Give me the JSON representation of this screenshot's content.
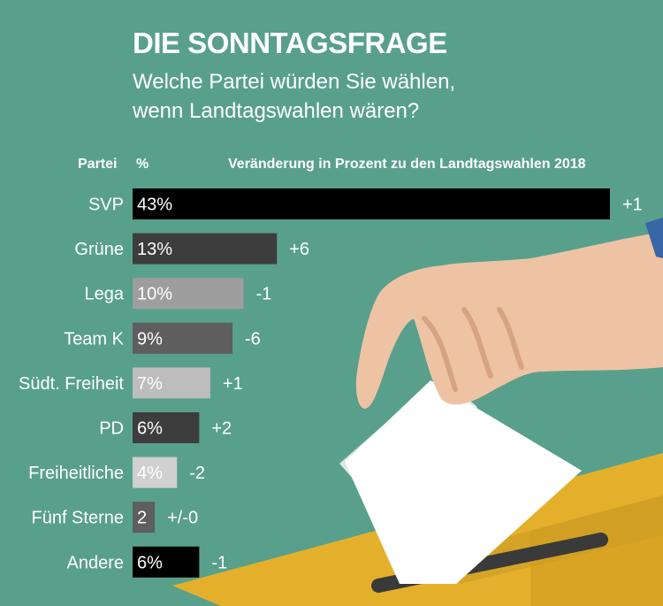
{
  "title": "DIE SONNTAGSFRAGE",
  "subtitle": "Welche Partei würden Sie wählen, wenn Landtagswahlen wären?",
  "headers": {
    "party": "Partei",
    "percent": "%",
    "change": "Veränderung in Prozent zu den Landtagswahlen 2018"
  },
  "colors": {
    "background": "#58a08c",
    "black": "#000000",
    "dark_gray": "#3d3d3d",
    "mid_gray": "#5e5e5e",
    "light_gray": "#9e9e9e",
    "pale_gray": "#bdbdbd",
    "ballot_box": "#e4b02c",
    "hand": "#eec3a4",
    "sleeve": "#3866a6"
  },
  "chart_data": {
    "type": "bar",
    "orientation": "horizontal",
    "categories": [
      "SVP",
      "Grüne",
      "Lega",
      "Team K",
      "Südt. Freiheit",
      "PD",
      "Freiheitliche",
      "Fünf Sterne",
      "Andere"
    ],
    "values": [
      43,
      13,
      10,
      9,
      7,
      6,
      4,
      2,
      6
    ],
    "value_labels": [
      "43%",
      "13%",
      "10%",
      "9%",
      "7%",
      "6%",
      "4%",
      "2",
      "6%"
    ],
    "changes": [
      "+1",
      "+6",
      "-1",
      "-6",
      "+1",
      "+2",
      "-2",
      "+/-0",
      "-1"
    ],
    "bar_colors": [
      "#000000",
      "#3d3d3d",
      "#9e9e9e",
      "#5e5e5e",
      "#bdbdbd",
      "#3d3d3d",
      "#d0d0d0",
      "#5e5e5e",
      "#000000"
    ],
    "xlim": [
      0,
      43
    ],
    "grid": false,
    "legend": "none"
  }
}
